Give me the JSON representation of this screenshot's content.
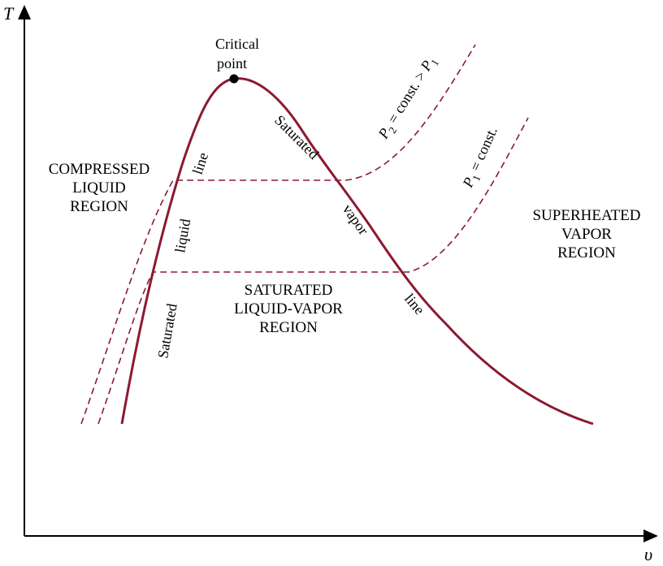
{
  "axes": {
    "y_label": "T",
    "x_label": "υ"
  },
  "critical_point": {
    "line1": "Critical",
    "line2": "point"
  },
  "regions": {
    "compressed": [
      "COMPRESSED",
      "LIQUID",
      "REGION"
    ],
    "superheated": [
      "SUPERHEATED",
      "VAPOR",
      "REGION"
    ],
    "saturated_mixture": [
      "SATURATED",
      "LIQUID-VAPOR",
      "REGION"
    ]
  },
  "saturated_liquid_line": {
    "word1": "Saturated",
    "word2": "liquid",
    "word3": "line"
  },
  "saturated_vapor_line": {
    "word1": "Saturated",
    "word2": "vapor",
    "word3": "line"
  },
  "isobars": {
    "p2": {
      "symbol": "P",
      "sub": "2",
      "mid": " = const. > ",
      "symbol2": "P",
      "sub2": "1"
    },
    "p1": {
      "symbol": "P",
      "sub": "1",
      "mid": " = const."
    }
  },
  "colors": {
    "dome": "#8b1a30",
    "isobar": "#8b1a30",
    "axes": "#000000"
  }
}
